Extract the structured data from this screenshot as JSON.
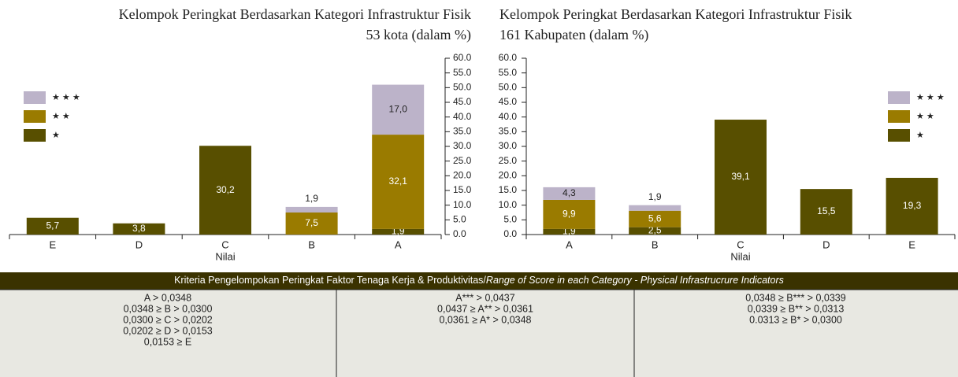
{
  "chart_data": [
    {
      "type": "bar",
      "stacked": true,
      "title": [
        "Kelompok Peringkat Berdasarkan Kategori  Infrastruktur Fisik",
        "53 kota (dalam %)"
      ],
      "xlabel": "Nilai",
      "categories": [
        "E",
        "D",
        "C",
        "B",
        "A"
      ],
      "series": [
        {
          "name": "★",
          "color": "#584f00",
          "values": [
            5.7,
            3.8,
            30.2,
            null,
            1.9
          ],
          "value_labels": [
            "5,7",
            "3,8",
            "30,2",
            null,
            "1,9"
          ]
        },
        {
          "name": "★ ★",
          "color": "#9a7b00",
          "values": [
            null,
            null,
            null,
            7.5,
            32.1
          ],
          "value_labels": [
            null,
            null,
            null,
            "7,5",
            "32,1"
          ]
        },
        {
          "name": "★ ★ ★",
          "color": "#bcb3c9",
          "values": [
            null,
            null,
            null,
            1.9,
            17.0
          ],
          "value_labels": [
            null,
            null,
            null,
            "1,9",
            "17,0"
          ]
        }
      ],
      "ylim": [
        0,
        60
      ],
      "yticks": [
        {
          "value": 0,
          "label": "0.0"
        },
        {
          "value": 5,
          "label": "5.0"
        },
        {
          "value": 10,
          "label": "10.0"
        },
        {
          "value": 15,
          "label": "15.0"
        },
        {
          "value": 20,
          "label": "20.0"
        },
        {
          "value": 25,
          "label": "25.0"
        },
        {
          "value": 30,
          "label": "30.0"
        },
        {
          "value": 35,
          "label": "35.0"
        },
        {
          "value": 40,
          "label": "40.0"
        },
        {
          "value": 45,
          "label": "45.0"
        },
        {
          "value": 50,
          "label": "50.0"
        },
        {
          "value": 55,
          "label": "55.0"
        },
        {
          "value": 60,
          "label": "60.0"
        }
      ],
      "yaxis_side": "right",
      "legend": "upper left",
      "title_align": "right"
    },
    {
      "type": "bar",
      "stacked": true,
      "title": [
        "Kelompok Peringkat Berdasarkan Kategori Infrastruktur Fisik",
        "161 Kabupaten (dalam %)"
      ],
      "xlabel": "Nilai",
      "categories": [
        "A",
        "B",
        "C",
        "D",
        "E"
      ],
      "series": [
        {
          "name": "★",
          "color": "#584f00",
          "values": [
            1.9,
            2.5,
            39.1,
            15.5,
            19.3
          ],
          "value_labels": [
            "1,9",
            "2,5",
            "39,1",
            "15,5",
            "19,3"
          ]
        },
        {
          "name": "★ ★",
          "color": "#9a7b00",
          "values": [
            9.9,
            5.6,
            null,
            null,
            null
          ],
          "value_labels": [
            "9,9",
            "5,6",
            null,
            null,
            null
          ]
        },
        {
          "name": "★ ★ ★",
          "color": "#bcb3c9",
          "values": [
            4.3,
            1.9,
            null,
            null,
            null
          ],
          "value_labels": [
            "4,3",
            "1,9",
            null,
            null,
            null
          ]
        }
      ],
      "ylim": [
        0,
        60
      ],
      "yticks": [
        {
          "value": 0,
          "label": "0.0"
        },
        {
          "value": 5,
          "label": "5.0"
        },
        {
          "value": 10,
          "label": "10.0"
        },
        {
          "value": 15,
          "label": "15.0"
        },
        {
          "value": 20,
          "label": "20.0"
        },
        {
          "value": 25,
          "label": "25.0"
        },
        {
          "value": 30,
          "label": "30.0"
        },
        {
          "value": 35,
          "label": "35.0"
        },
        {
          "value": 40,
          "label": "40.0"
        },
        {
          "value": 45,
          "label": "45.0"
        },
        {
          "value": 50,
          "label": "50.0"
        },
        {
          "value": 55,
          "label": "55.0"
        },
        {
          "value": 60,
          "label": "60.0"
        }
      ],
      "yaxis_side": "left",
      "legend": "upper right",
      "title_align": "left"
    }
  ],
  "table": {
    "header": [
      "Kriteria Pengelompokan Peringkat Faktor Tenaga Kerja & Produktivitas/",
      "Range of Score in each Category - Physical Infrastrucrure Indicators"
    ],
    "columns": [
      [
        "A > 0,0348",
        "0,0348 ≥ B > 0,0300",
        "0,0300 ≥ C > 0,0202",
        "0,0202 ≥ D > 0,0153",
        "0,0153 ≥ E"
      ],
      [
        "A*** > 0,0437",
        "0,0437 ≥ A** > 0,0361",
        "0,0361 ≥ A* > 0,0348"
      ],
      [
        "0,0348 ≥ B*** > 0,0339",
        "0,0339 ≥ B** > 0,0313",
        "0.0313 ≥ B* > 0,0300"
      ]
    ]
  }
}
